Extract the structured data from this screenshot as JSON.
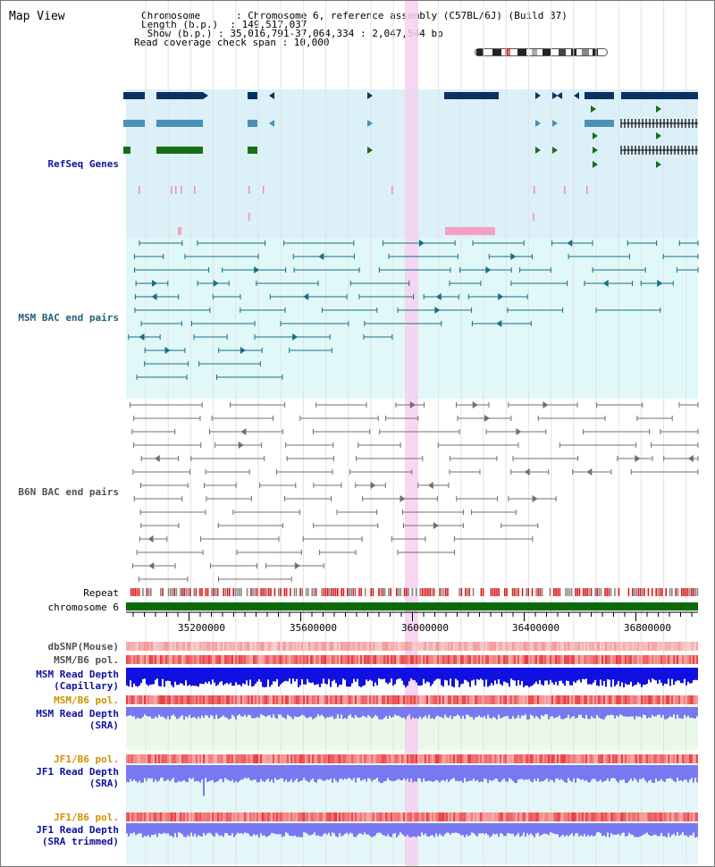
{
  "title": "Map View",
  "info": {
    "chromosome_label": "Chromosome      : Chromosome 6, reference assembly (C57BL/6J) (Build 37)",
    "length_label": "Length (b.p.)  : 149,517,037",
    "show_label": " Show (b.p.) : 35,016,791-37,064,334 : 2,047,544 bp",
    "coverage_label": "Read coverage check span : 10,000"
  },
  "tracks": {
    "refseq": "RefSeq Genes",
    "msm_bac": "MSM BAC end pairs",
    "b6n_bac": "B6N BAC end pairs",
    "repeat": "Repeat",
    "chromosome": "chromosome 6",
    "dbsnp": "dbSNP(Mouse)",
    "msm_b6_pol_1": "MSM/B6 pol.",
    "msm_read_depth_cap": "MSM Read Depth\n(Capillary)",
    "msm_b6_pol_2": "MSM/B6 pol.",
    "msm_read_depth_sra": "MSM Read Depth\n(SRA)",
    "jf1_b6_pol_1": "JF1/B6 pol.",
    "jf1_read_depth_sra": "JF1 Read Depth\n(SRA)",
    "jf1_b6_pol_2": "JF1/B6 pol.",
    "jf1_read_depth_trim": "JF1 Read Depth\n(SRA trimmed)"
  },
  "axis": {
    "ticks": [
      "35200000",
      "35600000",
      "36000000",
      "36400000",
      "36800000"
    ]
  },
  "colors": {
    "refseq_bg": "#dcf0f8",
    "msm_bac_bg": "#e0f8f8",
    "gene_dark": "#083262",
    "gene_mid": "#4a90b8",
    "gene_green": "#1a6e1a",
    "highlight": "#f6d0f0",
    "msm_bac_line": "#186e86",
    "b6n_bac_line": "#707070",
    "repeat_red": "#e01818",
    "chrom_green": "#0a6a0a",
    "depth_blue": "#1010e0",
    "sra_blue": "#7878f0",
    "label_blue": "#1010a0",
    "label_teal": "#20607a",
    "label_orange": "#d09000"
  }
}
